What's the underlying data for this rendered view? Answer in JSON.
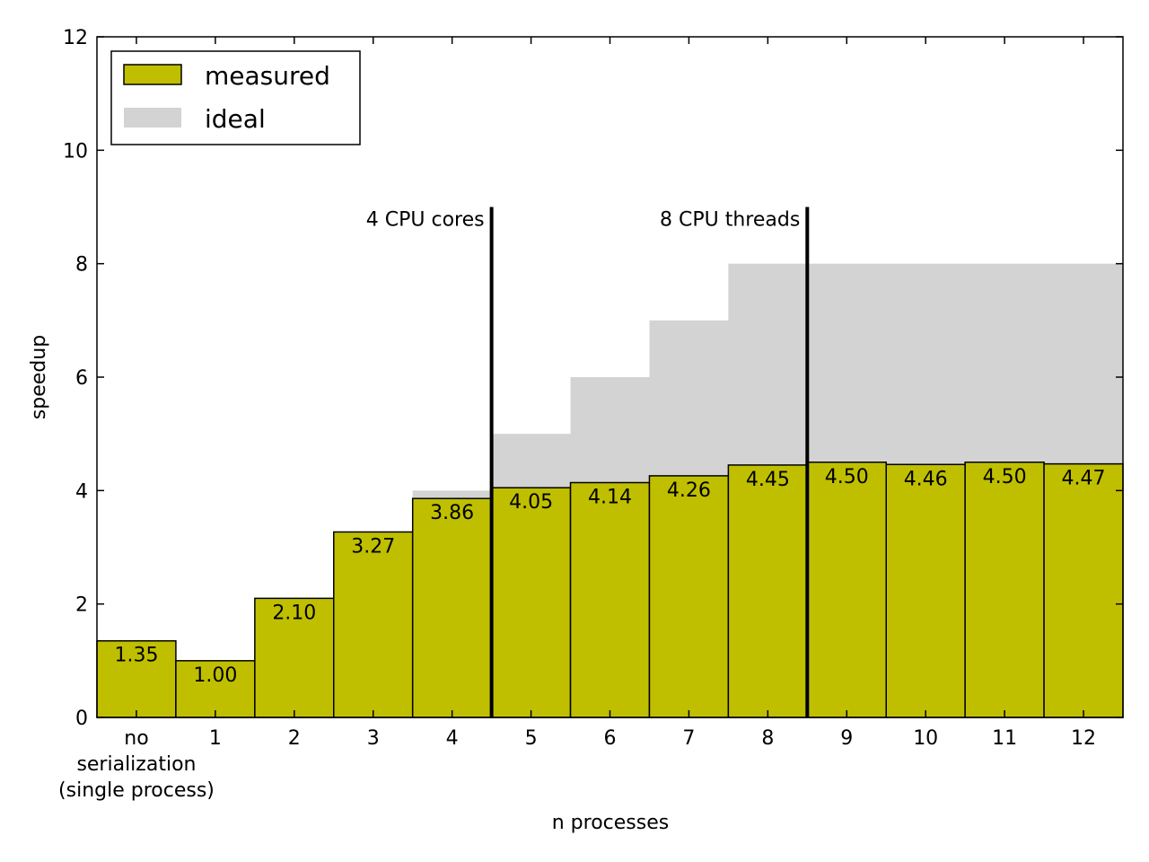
{
  "chart_data": {
    "type": "bar",
    "xlabel": "n processes",
    "ylabel": "speedup",
    "ylim": [
      0,
      12
    ],
    "yticks": [
      "0",
      "2",
      "4",
      "6",
      "8",
      "10",
      "12"
    ],
    "categories": [
      [
        "no",
        "serialization",
        "(single process)"
      ],
      [
        "1"
      ],
      [
        "2"
      ],
      [
        "3"
      ],
      [
        "4"
      ],
      [
        "5"
      ],
      [
        "6"
      ],
      [
        "7"
      ],
      [
        "8"
      ],
      [
        "9"
      ],
      [
        "10"
      ],
      [
        "11"
      ],
      [
        "12"
      ]
    ],
    "series": [
      {
        "name": "measured",
        "color": "#bfbf00",
        "values": [
          1.35,
          1.0,
          2.1,
          3.27,
          3.86,
          4.05,
          4.14,
          4.26,
          4.45,
          4.5,
          4.46,
          4.5,
          4.47
        ],
        "labels": [
          "1.35",
          "1.00",
          "2.10",
          "3.27",
          "3.86",
          "4.05",
          "4.14",
          "4.26",
          "4.45",
          "4.50",
          "4.46",
          "4.50",
          "4.47"
        ]
      },
      {
        "name": "ideal",
        "color": "#d3d3d3",
        "values": [
          1,
          1,
          2,
          3,
          4,
          5,
          6,
          7,
          8,
          8,
          8,
          8,
          8
        ]
      }
    ],
    "annotations": [
      {
        "text": "4 CPU cores",
        "after_index": 4,
        "top": 9
      },
      {
        "text": "8 CPU threads",
        "after_index": 8,
        "top": 9
      }
    ],
    "legend": {
      "placement": "top-left",
      "entries": [
        "measured",
        "ideal"
      ]
    },
    "grid": false
  }
}
